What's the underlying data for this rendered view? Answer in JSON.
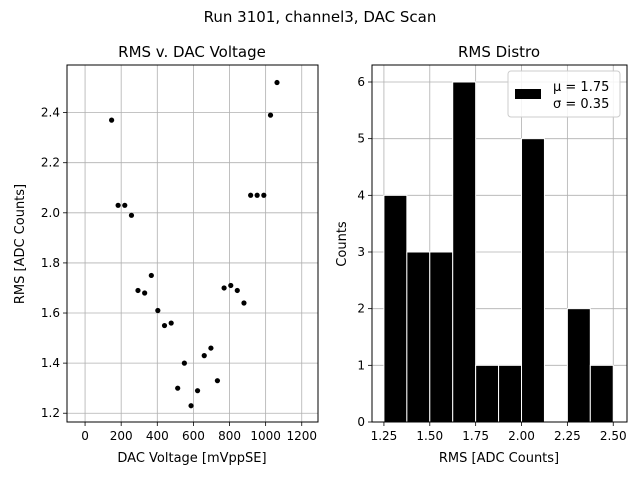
{
  "suptitle": "Run 3101, channel3, DAC Scan",
  "chart_data": [
    {
      "type": "scatter",
      "title": "RMS v. DAC Voltage",
      "xlabel": "DAC Voltage [mVppSE]",
      "ylabel": "RMS [ADC Counts]",
      "xlim": [
        -100,
        1290
      ],
      "ylim": [
        1.165,
        2.59
      ],
      "xticks": [
        0,
        200,
        400,
        600,
        800,
        1000,
        1200
      ],
      "xtick_labels": [
        "0",
        "200",
        "400",
        "600",
        "800",
        "1000",
        "1200"
      ],
      "yticks": [
        1.2,
        1.4,
        1.6,
        1.8,
        2.0,
        2.2,
        2.4
      ],
      "ytick_labels": [
        "1.2",
        "1.4",
        "1.6",
        "1.8",
        "2.0",
        "2.2",
        "2.4"
      ],
      "grid": true,
      "marker_color": "#000000",
      "points": [
        {
          "x": 147,
          "y": 2.37
        },
        {
          "x": 183,
          "y": 2.03
        },
        {
          "x": 220,
          "y": 2.03
        },
        {
          "x": 257,
          "y": 1.99
        },
        {
          "x": 293,
          "y": 1.69
        },
        {
          "x": 330,
          "y": 1.68
        },
        {
          "x": 367,
          "y": 1.75
        },
        {
          "x": 403,
          "y": 1.61
        },
        {
          "x": 440,
          "y": 1.55
        },
        {
          "x": 477,
          "y": 1.56
        },
        {
          "x": 513,
          "y": 1.3
        },
        {
          "x": 550,
          "y": 1.4
        },
        {
          "x": 587,
          "y": 1.23
        },
        {
          "x": 623,
          "y": 1.29
        },
        {
          "x": 660,
          "y": 1.43
        },
        {
          "x": 697,
          "y": 1.46
        },
        {
          "x": 733,
          "y": 1.33
        },
        {
          "x": 770,
          "y": 1.7
        },
        {
          "x": 807,
          "y": 1.71
        },
        {
          "x": 843,
          "y": 1.69
        },
        {
          "x": 880,
          "y": 1.64
        },
        {
          "x": 917,
          "y": 2.07
        },
        {
          "x": 953,
          "y": 2.07
        },
        {
          "x": 990,
          "y": 2.07
        },
        {
          "x": 1027,
          "y": 2.39
        },
        {
          "x": 1063,
          "y": 2.52
        }
      ]
    },
    {
      "type": "bar",
      "title": "RMS Distro",
      "xlabel": "RMS [ADC Counts]",
      "ylabel": "Counts",
      "xlim": [
        1.185,
        2.575
      ],
      "ylim": [
        0,
        6.3
      ],
      "xticks": [
        1.25,
        1.5,
        1.75,
        2.0,
        2.25,
        2.5
      ],
      "xtick_labels": [
        "1.25",
        "1.50",
        "1.75",
        "2.00",
        "2.25",
        "2.50"
      ],
      "yticks": [
        0,
        1,
        2,
        3,
        4,
        5,
        6
      ],
      "ytick_labels": [
        "0",
        "1",
        "2",
        "3",
        "4",
        "5",
        "6"
      ],
      "grid": true,
      "bar_color": "#000000",
      "bin_edges": [
        1.25,
        1.375,
        1.5,
        1.625,
        1.75,
        1.875,
        2.0,
        2.125,
        2.25,
        2.375,
        2.5
      ],
      "values": [
        4,
        3,
        3,
        6,
        1,
        1,
        5,
        0,
        2,
        1
      ],
      "legend": {
        "placement": "top-right",
        "line1": "μ = 1.75",
        "line2": "σ = 0.35"
      }
    }
  ]
}
